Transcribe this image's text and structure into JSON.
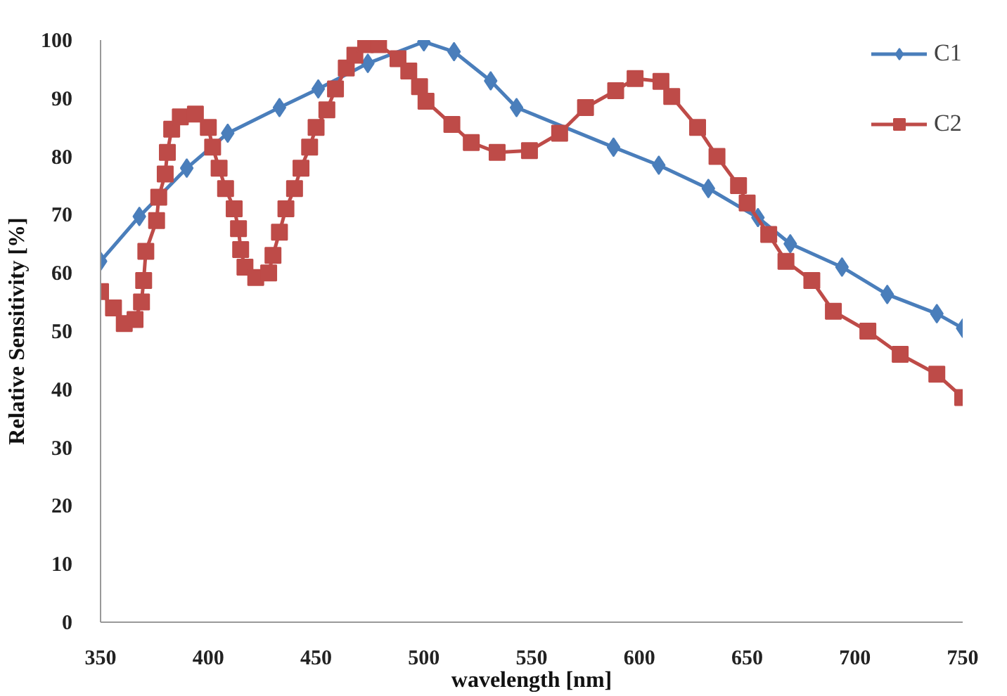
{
  "chart_data": {
    "type": "line",
    "xlabel": "wavelength [nm]",
    "ylabel": "Relative Sensitivity [%]",
    "xlim": [
      350,
      750
    ],
    "xticks": [
      350,
      400,
      450,
      500,
      550,
      600,
      650,
      700,
      750
    ],
    "ylim": [
      0,
      100
    ],
    "yticks": [
      0,
      10,
      20,
      30,
      40,
      50,
      60,
      70,
      80,
      90,
      100
    ],
    "grid": false,
    "legend": "top right",
    "line_style": "solid",
    "series": [
      {
        "name": "C1",
        "color": "#4a7ebb",
        "marker": "diamond",
        "x": [
          350,
          368,
          390,
          409,
          433,
          451,
          474,
          500,
          514,
          531,
          543,
          588,
          609,
          632,
          655,
          670,
          694,
          715,
          738,
          750
        ],
        "values": [
          62,
          69.7,
          78,
          84,
          88.4,
          91.6,
          96,
          99.7,
          98,
          93,
          88.4,
          81.6,
          78.5,
          74.5,
          69.5,
          65,
          61,
          56.3,
          53,
          50.5
        ]
      },
      {
        "name": "C2",
        "color": "#be4b48",
        "marker": "square",
        "x": [
          350,
          356,
          361,
          366,
          369,
          370,
          371,
          376,
          377,
          380,
          381,
          383,
          387,
          394,
          400,
          402,
          405,
          408,
          412,
          414,
          415,
          417,
          422,
          428,
          430,
          433,
          436,
          440,
          443,
          447,
          450,
          455,
          459,
          464,
          468,
          473,
          479,
          488,
          493,
          498,
          501,
          513,
          522,
          534,
          549,
          563,
          575,
          589,
          598,
          610,
          615,
          627,
          636,
          646,
          650,
          660,
          668,
          680,
          690,
          706,
          721,
          738,
          750
        ],
        "values": [
          56.8,
          54,
          51.3,
          52,
          55,
          58.7,
          63.7,
          69,
          73,
          77,
          80.7,
          84.7,
          86.8,
          87.3,
          85,
          81.6,
          78,
          74.5,
          71,
          67.6,
          64,
          61,
          59.2,
          60,
          63,
          67,
          71,
          74.5,
          78,
          81.6,
          85,
          88,
          91.6,
          95.2,
          97.4,
          99.2,
          99.2,
          96.8,
          94.7,
          92,
          89.5,
          85.5,
          82.4,
          80.7,
          81,
          84,
          88.4,
          91.3,
          93.4,
          92.9,
          90.3,
          85,
          80,
          75,
          72,
          66.6,
          62,
          58.7,
          53.4,
          50,
          46,
          42.6,
          38.6
        ]
      }
    ]
  }
}
